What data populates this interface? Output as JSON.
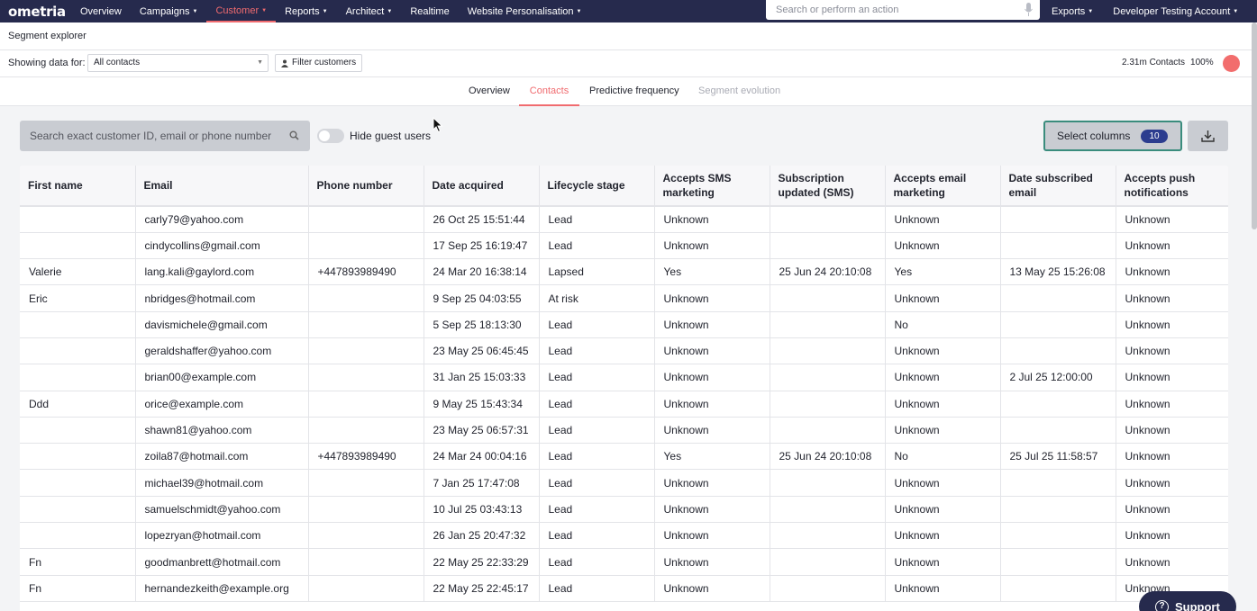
{
  "nav": {
    "logo": "ometria",
    "items": [
      {
        "label": "Overview",
        "caret": false,
        "active": false
      },
      {
        "label": "Campaigns",
        "caret": true,
        "active": false
      },
      {
        "label": "Customer",
        "caret": true,
        "active": true
      },
      {
        "label": "Reports",
        "caret": true,
        "active": false
      },
      {
        "label": "Architect",
        "caret": true,
        "active": false
      },
      {
        "label": "Realtime",
        "caret": false,
        "active": false
      },
      {
        "label": "Website Personalisation",
        "caret": true,
        "active": false
      }
    ],
    "search_placeholder": "Search or perform an action",
    "exports": "Exports",
    "account": "Developer Testing Account"
  },
  "page": {
    "title": "Segment explorer",
    "showing_label": "Showing data for:",
    "segment_select": "All contacts",
    "filter_button": "Filter customers",
    "contacts_count": "2.31m Contacts",
    "percent": "100%"
  },
  "tabs": [
    {
      "label": "Overview",
      "state": "normal"
    },
    {
      "label": "Contacts",
      "state": "active"
    },
    {
      "label": "Predictive frequency",
      "state": "normal"
    },
    {
      "label": "Segment evolution",
      "state": "disabled"
    }
  ],
  "toolbar": {
    "search_placeholder": "Search exact customer ID, email or phone number",
    "toggle_label": "Hide guest users",
    "select_columns": "Select columns",
    "column_count": "10"
  },
  "table": {
    "columns": [
      "First name",
      "Email",
      "Phone number",
      "Date acquired",
      "Lifecycle stage",
      "Accepts SMS marketing",
      "Subscription updated (SMS)",
      "Accepts email marketing",
      "Date subscribed email",
      "Accepts push notifications"
    ],
    "rows": [
      [
        "",
        "carly79@yahoo.com",
        "",
        "26 Oct 25 15:51:44",
        "Lead",
        "Unknown",
        "",
        "Unknown",
        "",
        "Unknown"
      ],
      [
        "",
        "cindycollins@gmail.com",
        "",
        "17 Sep 25 16:19:47",
        "Lead",
        "Unknown",
        "",
        "Unknown",
        "",
        "Unknown"
      ],
      [
        "Valerie",
        "lang.kali@gaylord.com",
        "+447893989490",
        "24 Mar 20 16:38:14",
        "Lapsed",
        "Yes",
        "25 Jun 24 20:10:08",
        "Yes",
        "13 May 25 15:26:08",
        "Unknown"
      ],
      [
        "Eric",
        "nbridges@hotmail.com",
        "",
        "9 Sep 25 04:03:55",
        "At risk",
        "Unknown",
        "",
        "Unknown",
        "",
        "Unknown"
      ],
      [
        "",
        "davismichele@gmail.com",
        "",
        "5 Sep 25 18:13:30",
        "Lead",
        "Unknown",
        "",
        "No",
        "",
        "Unknown"
      ],
      [
        "",
        "geraldshaffer@yahoo.com",
        "",
        "23 May 25 06:45:45",
        "Lead",
        "Unknown",
        "",
        "Unknown",
        "",
        "Unknown"
      ],
      [
        "",
        "brian00@example.com",
        "",
        "31 Jan 25 15:03:33",
        "Lead",
        "Unknown",
        "",
        "Unknown",
        "2 Jul 25 12:00:00",
        "Unknown"
      ],
      [
        "Ddd",
        "orice@example.com",
        "",
        "9 May 25 15:43:34",
        "Lead",
        "Unknown",
        "",
        "Unknown",
        "",
        "Unknown"
      ],
      [
        "",
        "shawn81@yahoo.com",
        "",
        "23 May 25 06:57:31",
        "Lead",
        "Unknown",
        "",
        "Unknown",
        "",
        "Unknown"
      ],
      [
        "",
        "zoila87@hotmail.com",
        "+447893989490",
        "24 Mar 24 00:04:16",
        "Lead",
        "Yes",
        "25 Jun 24 20:10:08",
        "No",
        "25 Jul 25 11:58:57",
        "Unknown"
      ],
      [
        "",
        "michael39@hotmail.com",
        "",
        "7 Jan 25 17:47:08",
        "Lead",
        "Unknown",
        "",
        "Unknown",
        "",
        "Unknown"
      ],
      [
        "",
        "samuelschmidt@yahoo.com",
        "",
        "10 Jul 25 03:43:13",
        "Lead",
        "Unknown",
        "",
        "Unknown",
        "",
        "Unknown"
      ],
      [
        "",
        "lopezryan@hotmail.com",
        "",
        "26 Jan 25 20:47:32",
        "Lead",
        "Unknown",
        "",
        "Unknown",
        "",
        "Unknown"
      ],
      [
        "Fn",
        "goodmanbrett@hotmail.com",
        "",
        "22 May 25 22:33:29",
        "Lead",
        "Unknown",
        "",
        "Unknown",
        "",
        "Unknown"
      ],
      [
        "Fn",
        "hernandezkeith@example.org",
        "",
        "22 May 25 22:45:17",
        "Lead",
        "Unknown",
        "",
        "Unknown",
        "",
        "Unknown"
      ]
    ]
  },
  "support": {
    "label": "Support",
    "glyph": "?"
  },
  "colors": {
    "nav_bg": "#262a4d",
    "accent": "#f06b6f",
    "badge": "#2c3d8f",
    "focus": "#3a8c7d"
  }
}
